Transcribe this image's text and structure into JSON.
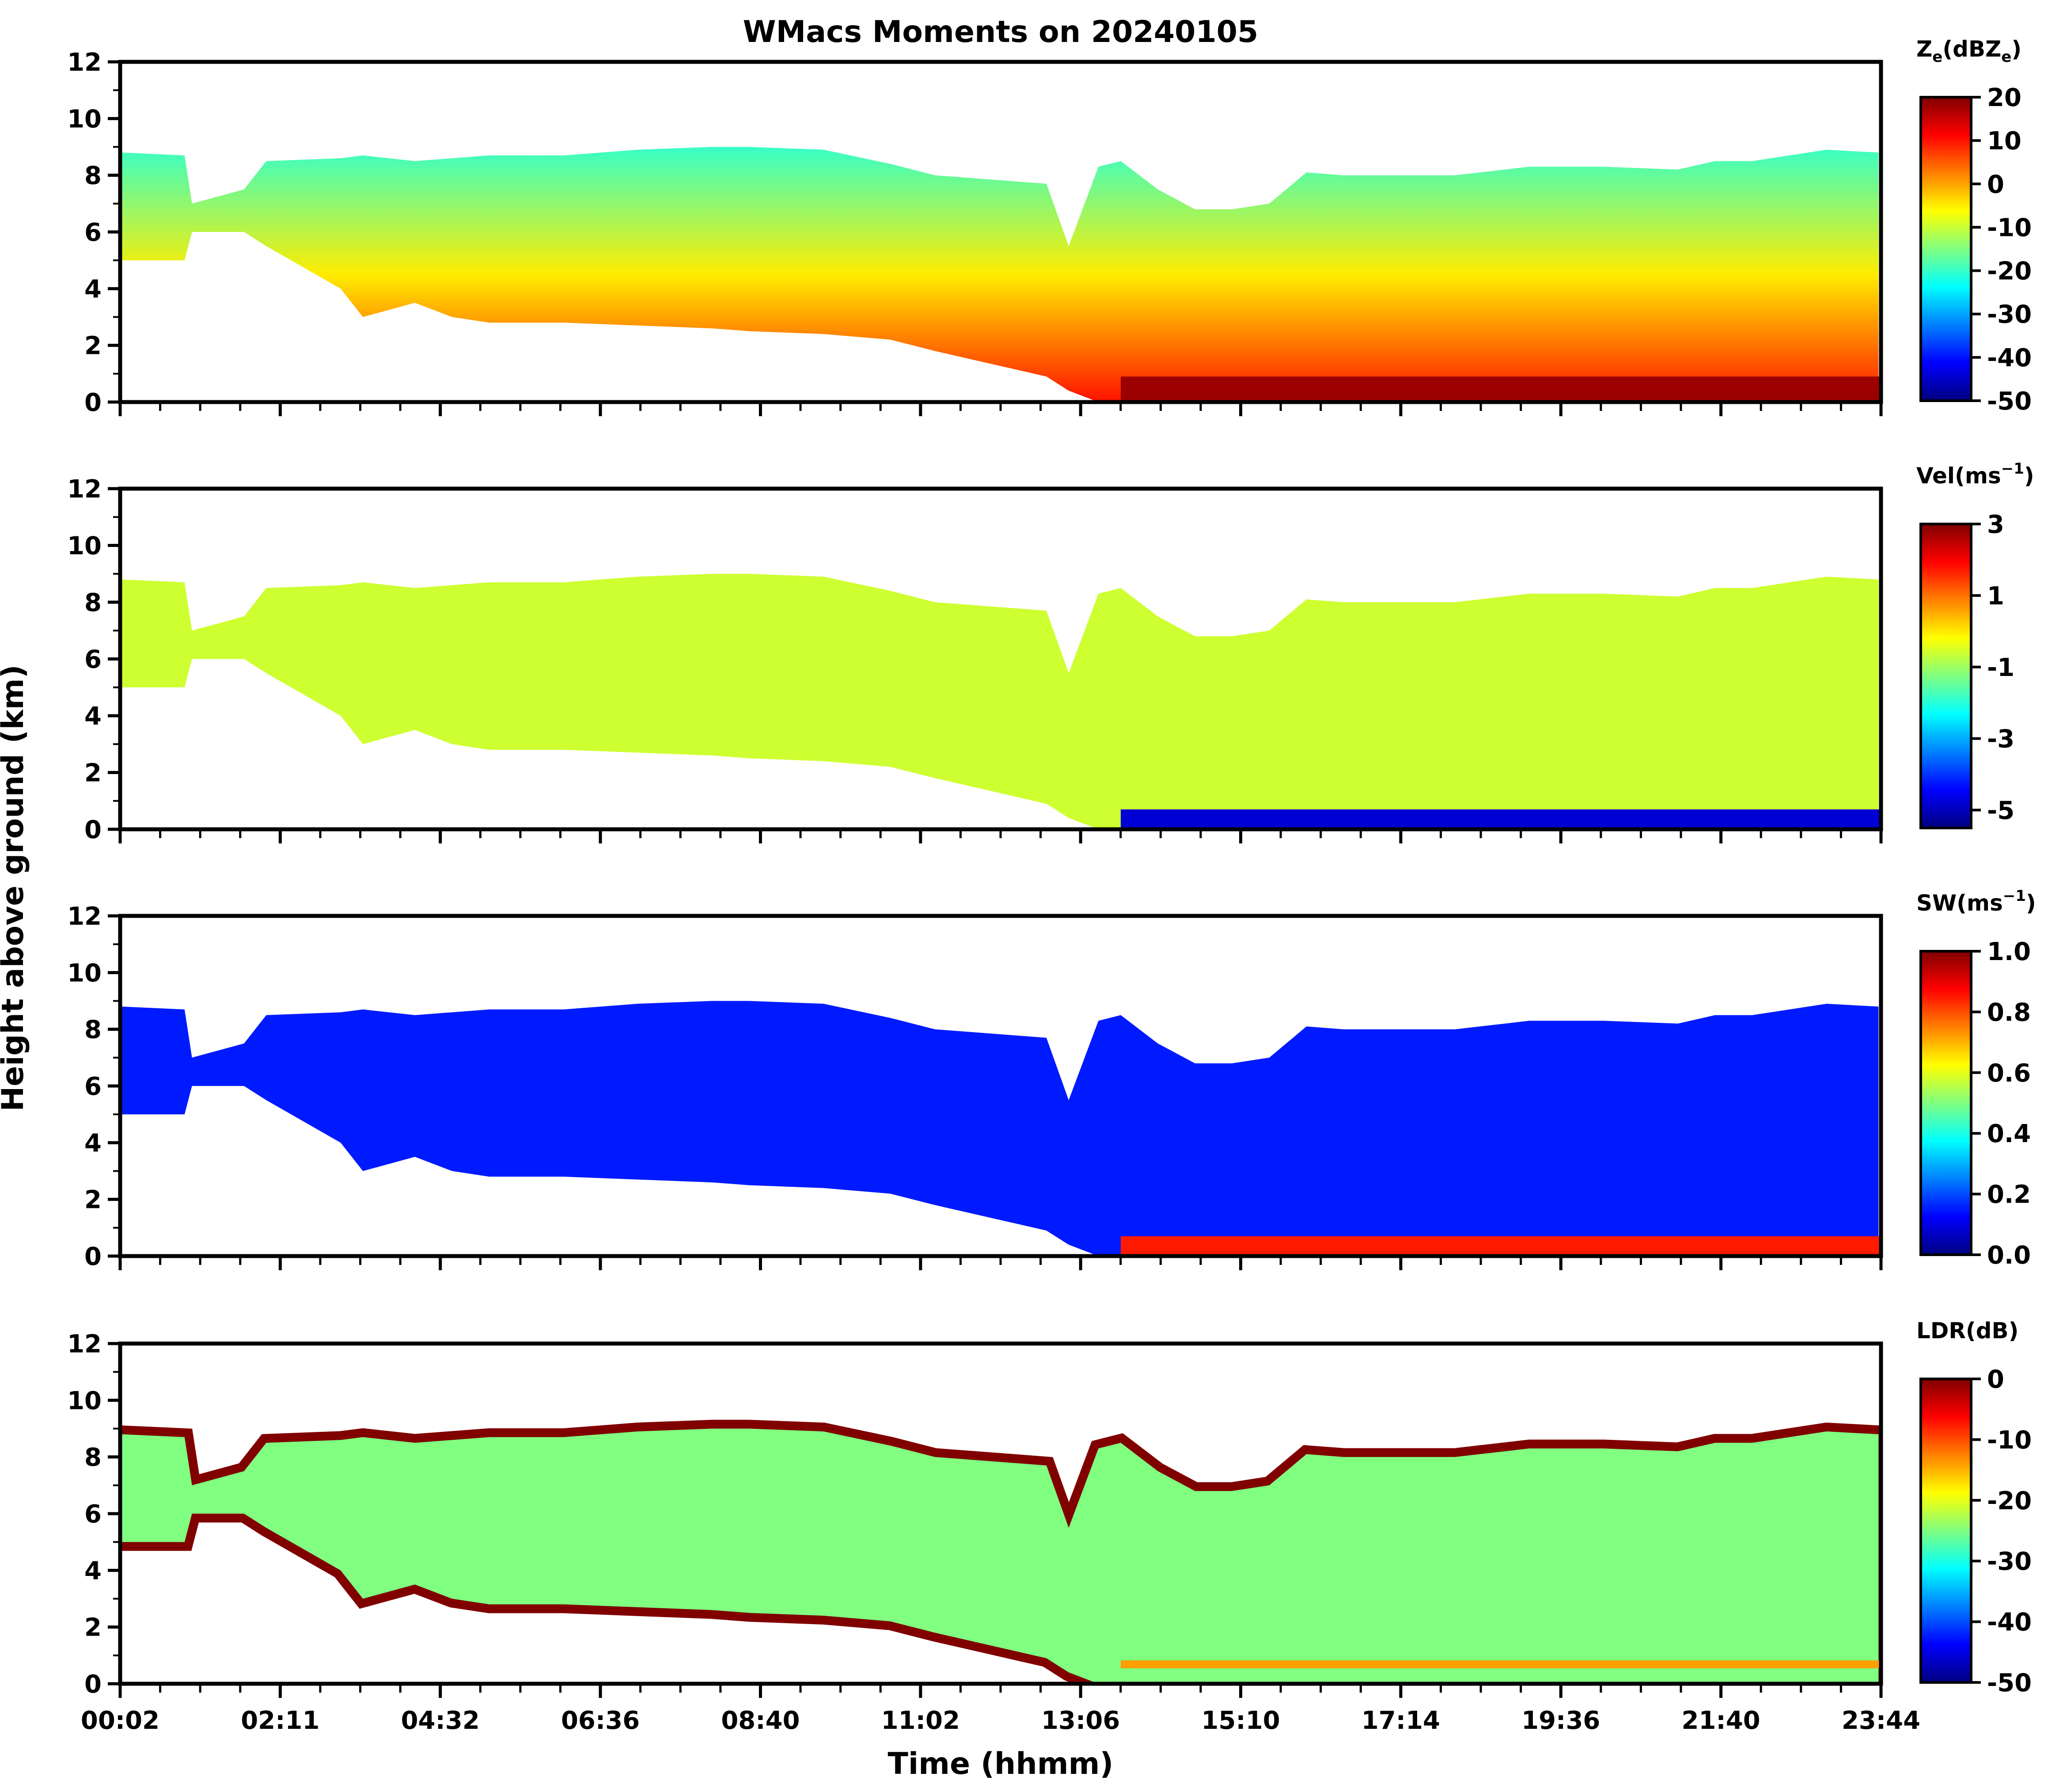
{
  "chart_data": {
    "type": "heatmap",
    "title": "WMacs Moments on 20240105",
    "xlabel": "Time (hhmm)",
    "ylabel": "Height above ground (km)",
    "x_tick_labels": [
      "00:02",
      "02:11",
      "04:32",
      "06:36",
      "08:40",
      "11:02",
      "13:06",
      "15:10",
      "17:14",
      "19:36",
      "21:40",
      "23:44"
    ],
    "x_range_hours": [
      0.033,
      23.733
    ],
    "ylim": [
      0,
      12
    ],
    "y_ticks": [
      0,
      2,
      4,
      6,
      8,
      10,
      12
    ],
    "panels": [
      {
        "id": "ze",
        "colorbar_label": "Ze(dBZe)",
        "colorbar_label_main": "Z",
        "colorbar_label_sub1": "e",
        "colorbar_label_mid": "(dBZ",
        "colorbar_label_sub2": "e",
        "colorbar_label_end": ")",
        "vmin": -50,
        "vmax": 20,
        "colorbar_ticks": [
          "20",
          "10",
          "0",
          "-10",
          "-20",
          "-30",
          "-40",
          "-50"
        ],
        "colorbar_tick_values": [
          20,
          10,
          0,
          -10,
          -20,
          -30,
          -40,
          -50
        ],
        "cloud_top_value": -20,
        "cloud_base_value": 10,
        "melting_layer_value": 18,
        "surface_precip_value": 14
      },
      {
        "id": "vel",
        "colorbar_label": "Vel(ms-1)",
        "colorbar_label_main": "Vel(ms",
        "colorbar_label_sup": "−1",
        "colorbar_label_end": ")",
        "vmin": -5.5,
        "vmax": 3,
        "colorbar_ticks": [
          "3",
          "1",
          "-1",
          "-3",
          "-5"
        ],
        "colorbar_tick_values": [
          3,
          1,
          -1,
          -3,
          -5
        ],
        "cloud_value": -0.6,
        "surface_precip_value": -4.8
      },
      {
        "id": "sw",
        "colorbar_label": "SW(ms-1)",
        "colorbar_label_main": "SW(ms",
        "colorbar_label_sup": "−1",
        "colorbar_label_end": ")",
        "vmin": 0,
        "vmax": 1,
        "colorbar_ticks": [
          "1.0",
          "0.8",
          "0.6",
          "0.4",
          "0.2",
          "0.0"
        ],
        "colorbar_tick_values": [
          1.0,
          0.8,
          0.6,
          0.4,
          0.2,
          0.0
        ],
        "cloud_value": 0.15,
        "surface_precip_value": 0.85
      },
      {
        "id": "ldr",
        "colorbar_label": "LDR(dB)",
        "colorbar_label_main": "LDR(dB)",
        "vmin": -50,
        "vmax": 0,
        "colorbar_ticks": [
          "0",
          "-10",
          "-20",
          "-30",
          "-40",
          "-50"
        ],
        "colorbar_tick_values": [
          0,
          -10,
          -20,
          -30,
          -40,
          -50
        ],
        "cloud_edge_value": 0,
        "cloud_interior_value": -25,
        "melting_layer_value": -14
      }
    ],
    "cloud_boundaries": {
      "time_hours": [
        0.05,
        0.9,
        1.0,
        1.7,
        2.0,
        3.0,
        3.3,
        4.0,
        4.5,
        5.0,
        6.0,
        7.0,
        8.0,
        8.5,
        9.5,
        10.4,
        11.0,
        12.0,
        12.5,
        12.8,
        13.2,
        13.5,
        14.0,
        14.5,
        15.0,
        15.5,
        16.0,
        16.5,
        17.0,
        18.0,
        19.0,
        20.0,
        21.0,
        21.5,
        22.0,
        22.5,
        23.0,
        23.7
      ],
      "cloud_top_km": [
        8.8,
        8.7,
        7.0,
        7.5,
        8.5,
        8.6,
        8.7,
        8.5,
        8.6,
        8.7,
        8.7,
        8.9,
        9.0,
        9.0,
        8.9,
        8.4,
        8.0,
        7.8,
        7.7,
        5.5,
        8.3,
        8.5,
        7.5,
        6.8,
        6.8,
        7.0,
        8.1,
        8.0,
        8.0,
        8.0,
        8.3,
        8.3,
        8.2,
        8.5,
        8.5,
        8.7,
        8.9,
        8.8
      ],
      "cloud_base_km": [
        5.0,
        5.0,
        6.0,
        6.0,
        5.5,
        4.0,
        3.0,
        3.5,
        3.0,
        2.8,
        2.8,
        2.7,
        2.6,
        2.5,
        2.4,
        2.2,
        1.8,
        1.2,
        0.9,
        0.4,
        0.0,
        0.0,
        0.0,
        0.0,
        0.0,
        0.0,
        0.0,
        0.0,
        0.0,
        0.0,
        0.0,
        0.0,
        0.0,
        0.0,
        0.0,
        0.0,
        0.0,
        0.0
      ],
      "melting_layer_km": 0.7
    }
  }
}
